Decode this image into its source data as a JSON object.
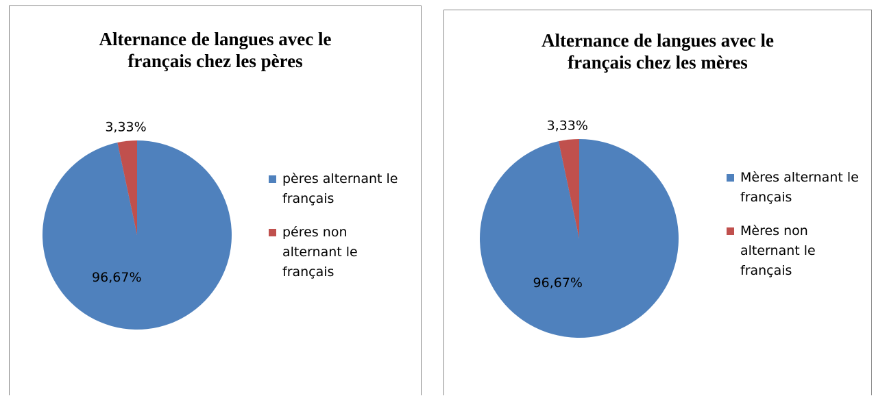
{
  "chart_data": [
    {
      "type": "pie",
      "title": "Alternance de langues avec le français chez les pères",
      "categories": [
        "pères alternant le français",
        "péres non alternant le français"
      ],
      "values": [
        96.67,
        3.33
      ],
      "value_labels": [
        "96,67%",
        "3,33%"
      ],
      "colors": [
        "#4f81bd",
        "#c0504d"
      ],
      "legend": "right"
    },
    {
      "type": "pie",
      "title": "Alternance de langues avec le français chez les mères",
      "categories": [
        "Mères alternant le français",
        "Mères non alternant le français"
      ],
      "values": [
        96.67,
        3.33
      ],
      "value_labels": [
        "96,67%",
        "3,33%"
      ],
      "colors": [
        "#4f81bd",
        "#c0504d"
      ],
      "legend": "right"
    }
  ]
}
